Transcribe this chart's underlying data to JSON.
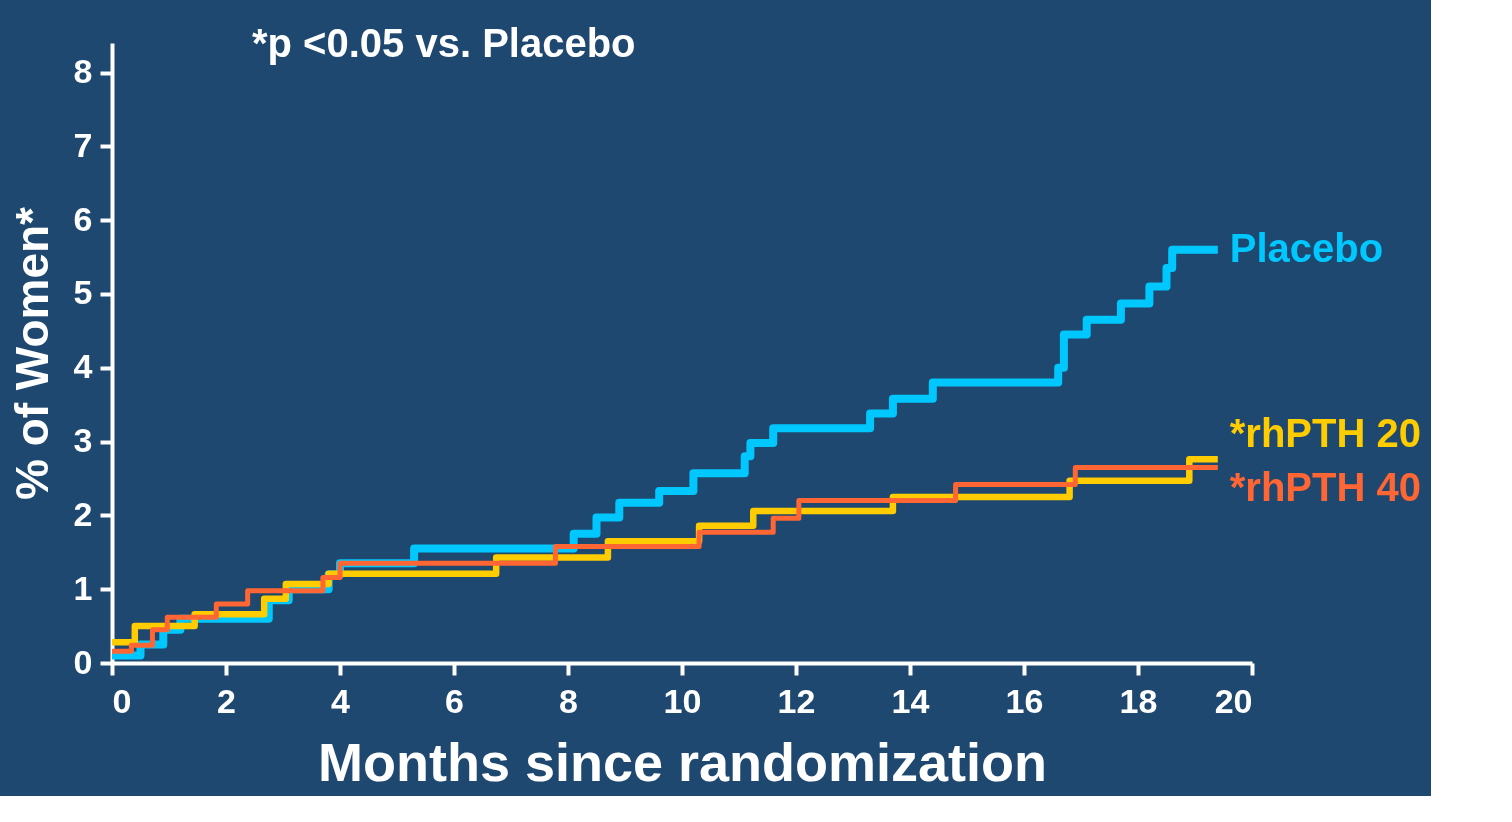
{
  "chart_data": {
    "type": "step",
    "xlabel": "Months since randomization",
    "ylabel": "% of Women*",
    "annotations": [
      "*p <0.05 vs. Placebo"
    ],
    "xlim": [
      0,
      20
    ],
    "xticks": [
      0,
      2,
      4,
      6,
      8,
      10,
      12,
      14,
      16,
      18,
      20
    ],
    "ylim": [
      0,
      8.4
    ],
    "yticks": [
      0,
      1,
      2,
      3,
      4,
      5,
      6,
      7,
      8
    ],
    "grid": false,
    "legend": false,
    "marker": "none",
    "line_style": "solid",
    "series": [
      {
        "name": "Placebo",
        "color": "#00c8ff",
        "x": [
          0,
          0.5,
          0.9,
          1.2,
          2.75,
          3.1,
          3.8,
          4.0,
          5.3,
          8.1,
          8.5,
          8.9,
          9.6,
          10.2,
          11.1,
          11.2,
          11.6,
          13.3,
          13.7,
          14.4,
          16.6,
          16.7,
          17.1,
          17.7,
          18.2,
          18.5,
          18.6,
          19.4
        ],
        "values": [
          0.1,
          0.25,
          0.45,
          0.6,
          0.85,
          1.0,
          1.2,
          1.35,
          1.55,
          1.75,
          1.97,
          2.17,
          2.33,
          2.57,
          2.8,
          2.98,
          3.18,
          3.38,
          3.58,
          3.8,
          4.0,
          4.45,
          4.65,
          4.87,
          5.1,
          5.35,
          5.6,
          5.6
        ]
      },
      {
        "name": "*rhPTH 20",
        "color": "#ffcc00",
        "x": [
          0,
          0.4,
          1.45,
          2.67,
          3.05,
          3.8,
          6.74,
          8.7,
          10.3,
          11.25,
          13.7,
          16.8,
          18.9,
          19.4
        ],
        "values": [
          0.28,
          0.5,
          0.66,
          0.87,
          1.07,
          1.21,
          1.43,
          1.65,
          1.86,
          2.06,
          2.25,
          2.47,
          2.76,
          2.76
        ]
      },
      {
        "name": "*rhPTH 40",
        "color": "#ff6633",
        "x": [
          0,
          0.34,
          0.71,
          0.97,
          1.83,
          2.38,
          3.7,
          4.0,
          7.78,
          10.3,
          11.6,
          12.05,
          14.8,
          16.9,
          19.4
        ],
        "values": [
          0.16,
          0.24,
          0.45,
          0.62,
          0.8,
          0.98,
          1.16,
          1.35,
          1.58,
          1.77,
          1.96,
          2.2,
          2.42,
          2.65,
          2.65
        ]
      }
    ]
  }
}
